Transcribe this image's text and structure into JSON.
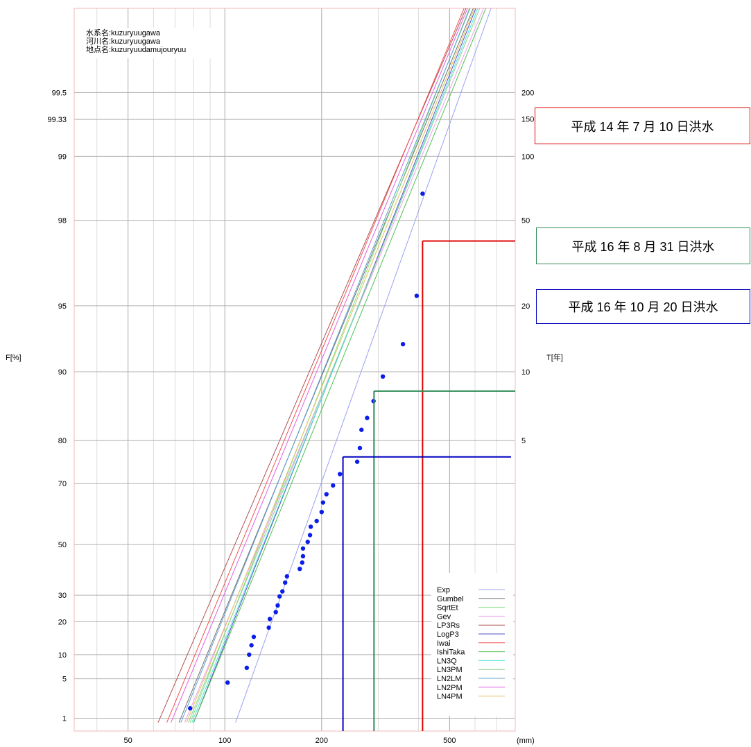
{
  "chart_data": {
    "type": "scatter",
    "title": "",
    "info_lines": [
      "水系名:kuzuryuugawa",
      "河川名:kuzuryuugawa",
      "地点名:kuzuryuudamujouryuu"
    ],
    "xlabel": "(mm)",
    "ylabel_left": "F[%]",
    "ylabel_right": "T[年]",
    "x_scale": "log",
    "xlim": [
      34,
      800
    ],
    "x_ticks": [
      50,
      100,
      200,
      500
    ],
    "y_scale": "gumbel-probability",
    "ylim": [
      0.5,
      99.8
    ],
    "y_ticks_left": [
      1,
      5,
      10,
      20,
      30,
      50,
      70,
      80,
      90,
      95,
      98,
      99,
      99.33,
      99.5
    ],
    "y_ticks_right": [
      5,
      10,
      20,
      50,
      100,
      150,
      200
    ],
    "grid": true,
    "points": [
      {
        "x": 78,
        "y": 1.6
      },
      {
        "x": 102,
        "y": 4.4
      },
      {
        "x": 117,
        "y": 7.0
      },
      {
        "x": 119,
        "y": 10.0
      },
      {
        "x": 121,
        "y": 12.5
      },
      {
        "x": 123,
        "y": 15.0
      },
      {
        "x": 137,
        "y": 18.0
      },
      {
        "x": 138,
        "y": 21.0
      },
      {
        "x": 144,
        "y": 23.5
      },
      {
        "x": 146,
        "y": 26.0
      },
      {
        "x": 148,
        "y": 29.5
      },
      {
        "x": 151,
        "y": 31.5
      },
      {
        "x": 154,
        "y": 35.0
      },
      {
        "x": 156,
        "y": 37.5
      },
      {
        "x": 171,
        "y": 40.5
      },
      {
        "x": 174,
        "y": 43.0
      },
      {
        "x": 175,
        "y": 45.5
      },
      {
        "x": 175,
        "y": 48.5
      },
      {
        "x": 181,
        "y": 51.0
      },
      {
        "x": 184,
        "y": 53.5
      },
      {
        "x": 185,
        "y": 56.5
      },
      {
        "x": 193,
        "y": 58.5
      },
      {
        "x": 200,
        "y": 61.5
      },
      {
        "x": 202,
        "y": 64.5
      },
      {
        "x": 207,
        "y": 67.0
      },
      {
        "x": 217,
        "y": 69.5
      },
      {
        "x": 228,
        "y": 72.5
      },
      {
        "x": 258,
        "y": 75.5
      },
      {
        "x": 263,
        "y": 78.5
      },
      {
        "x": 266,
        "y": 82.0
      },
      {
        "x": 277,
        "y": 84.0
      },
      {
        "x": 290,
        "y": 86.5
      },
      {
        "x": 310,
        "y": 89.5
      },
      {
        "x": 358,
        "y": 92.5
      },
      {
        "x": 395,
        "y": 95.5
      },
      {
        "x": 412,
        "y": 98.5
      }
    ],
    "legend": [
      {
        "name": "Exp",
        "color": "#9aa0f0"
      },
      {
        "name": "Gumbel",
        "color": "#707070"
      },
      {
        "name": "SqrtEt",
        "color": "#80e080"
      },
      {
        "name": "Gev",
        "color": "#f0a0f0"
      },
      {
        "name": "LP3Rs",
        "color": "#b05050"
      },
      {
        "name": "LogP3",
        "color": "#5050c0"
      },
      {
        "name": "Iwai",
        "color": "#f05050"
      },
      {
        "name": "IshiTaka",
        "color": "#50c050"
      },
      {
        "name": "LN3Q",
        "color": "#50e0e0"
      },
      {
        "name": "LN3PM",
        "color": "#90d090"
      },
      {
        "name": "LN2LM",
        "color": "#60a0d0"
      },
      {
        "name": "LN2PM",
        "color": "#e060e0"
      },
      {
        "name": "LN4PM",
        "color": "#e0c060"
      }
    ],
    "fit_lines": [
      {
        "name": "Exp",
        "color": "#9aa0f0",
        "x1": 108,
        "y1": 0.8,
        "x2": 720,
        "y2": 99.85
      },
      {
        "name": "Gumbel",
        "color": "#707070",
        "x1": 72,
        "y1": 0.8,
        "x2": 640,
        "y2": 99.85
      },
      {
        "name": "SqrtEt",
        "color": "#80e080",
        "x1": 78,
        "y1": 0.8,
        "x2": 620,
        "y2": 99.85
      },
      {
        "name": "Gev",
        "color": "#f0a0f0",
        "x1": 75,
        "y1": 0.8,
        "x2": 690,
        "y2": 99.85
      },
      {
        "name": "LP3Rs",
        "color": "#b05050",
        "x1": 62,
        "y1": 0.8,
        "x2": 610,
        "y2": 99.85
      },
      {
        "name": "LogP3",
        "color": "#5050c0",
        "x1": 80,
        "y1": 0.8,
        "x2": 650,
        "y2": 99.85
      },
      {
        "name": "Iwai",
        "color": "#f05050",
        "x1": 66,
        "y1": 0.8,
        "x2": 600,
        "y2": 99.85
      },
      {
        "name": "IshiTaka",
        "color": "#50c050",
        "x1": 80,
        "y1": 0.8,
        "x2": 700,
        "y2": 99.85
      },
      {
        "name": "LN3Q",
        "color": "#50e0e0",
        "x1": 79,
        "y1": 0.8,
        "x2": 660,
        "y2": 99.85
      },
      {
        "name": "LN3PM",
        "color": "#90d090",
        "x1": 77,
        "y1": 0.8,
        "x2": 670,
        "y2": 99.85
      },
      {
        "name": "LN2LM",
        "color": "#60a0d0",
        "x1": 73,
        "y1": 0.8,
        "x2": 625,
        "y2": 99.85
      },
      {
        "name": "LN2PM",
        "color": "#e060e0",
        "x1": 68,
        "y1": 0.8,
        "x2": 615,
        "y2": 99.85
      },
      {
        "name": "LN4PM",
        "color": "#e0c060",
        "x1": 76,
        "y1": 0.8,
        "x2": 645,
        "y2": 99.85
      }
    ],
    "floods": [
      {
        "label": "平成 14 年 7 月 10 日洪水",
        "color": "#e00000",
        "x": 412,
        "f": 97.5
      },
      {
        "label": "平成 16 年 8 月 31 日洪水",
        "color": "#2e8b57",
        "x": 291,
        "f": 87.8
      },
      {
        "label": "平成 16 年 10 月 20 日洪水",
        "color": "#0000c0",
        "x": 233,
        "f": 76.6
      }
    ]
  }
}
